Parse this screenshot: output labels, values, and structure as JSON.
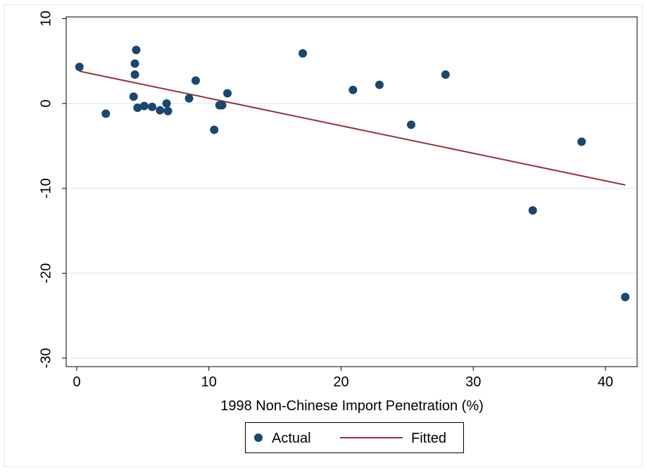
{
  "chart_data": {
    "type": "scatter",
    "title": "",
    "xlabel": "1998 Non-Chinese Import Penetration (%)",
    "ylabel": "",
    "xlim": [
      -0.8,
      42.4
    ],
    "ylim": [
      -31,
      10.2
    ],
    "x_ticks": [
      {
        "value": 0,
        "label": "0"
      },
      {
        "value": 10,
        "label": "10"
      },
      {
        "value": 20,
        "label": "20"
      },
      {
        "value": 30,
        "label": "30"
      },
      {
        "value": 40,
        "label": "40"
      }
    ],
    "y_ticks": [
      {
        "value": 10,
        "label": "10"
      },
      {
        "value": 0,
        "label": "0"
      },
      {
        "value": -10,
        "label": "-10"
      },
      {
        "value": -20,
        "label": "-20"
      },
      {
        "value": -30,
        "label": "-30"
      }
    ],
    "grid": "horizontal",
    "legend_position": "bottom",
    "series": [
      {
        "name": "Actual",
        "kind": "scatter",
        "color": "#1a476f",
        "points": [
          {
            "x": 0.2,
            "y": 4.3
          },
          {
            "x": 2.2,
            "y": -1.2
          },
          {
            "x": 4.3,
            "y": 0.8
          },
          {
            "x": 4.4,
            "y": 3.4
          },
          {
            "x": 4.4,
            "y": 4.7
          },
          {
            "x": 4.5,
            "y": 6.3
          },
          {
            "x": 4.6,
            "y": -0.5
          },
          {
            "x": 5.1,
            "y": -0.3
          },
          {
            "x": 5.7,
            "y": -0.4
          },
          {
            "x": 6.3,
            "y": -0.8
          },
          {
            "x": 6.8,
            "y": 0.0
          },
          {
            "x": 6.9,
            "y": -0.9
          },
          {
            "x": 8.5,
            "y": 0.6
          },
          {
            "x": 9.0,
            "y": 2.7
          },
          {
            "x": 10.4,
            "y": -3.1
          },
          {
            "x": 10.8,
            "y": -0.2
          },
          {
            "x": 11.0,
            "y": -0.2
          },
          {
            "x": 11.4,
            "y": 1.2
          },
          {
            "x": 17.1,
            "y": 5.9
          },
          {
            "x": 20.9,
            "y": 1.6
          },
          {
            "x": 22.9,
            "y": 2.2
          },
          {
            "x": 25.3,
            "y": -2.5
          },
          {
            "x": 27.9,
            "y": 3.4
          },
          {
            "x": 34.5,
            "y": -12.6
          },
          {
            "x": 38.2,
            "y": -4.5
          },
          {
            "x": 41.5,
            "y": -22.8
          }
        ]
      },
      {
        "name": "Fitted",
        "kind": "line",
        "color": "#90353b",
        "points": [
          {
            "x": 0.2,
            "y": 3.8
          },
          {
            "x": 41.5,
            "y": -9.6
          }
        ]
      }
    ]
  }
}
